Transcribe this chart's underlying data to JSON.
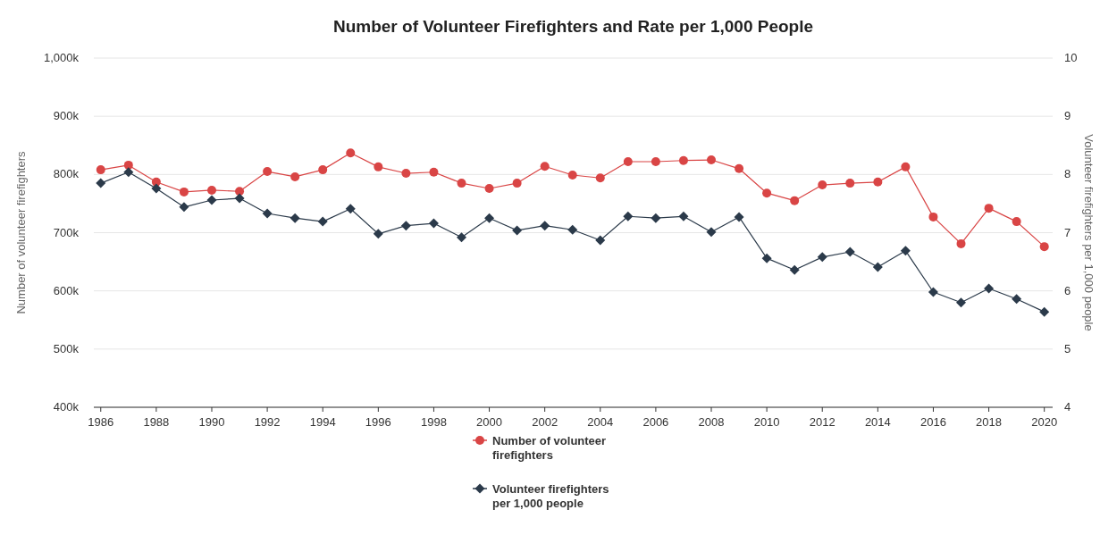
{
  "chart_data": {
    "type": "line",
    "title": "Number of Volunteer Firefighters and Rate per 1,000 People",
    "ylabel": "Number of volunteer firefighters",
    "y2label": "Volunteer firefighters per 1,000 people",
    "x": [
      1986,
      1987,
      1988,
      1989,
      1990,
      1991,
      1992,
      1993,
      1994,
      1995,
      1996,
      1997,
      1998,
      1999,
      2000,
      2001,
      2002,
      2003,
      2004,
      2005,
      2006,
      2007,
      2008,
      2009,
      2010,
      2011,
      2012,
      2013,
      2014,
      2015,
      2016,
      2017,
      2018,
      2019,
      2020
    ],
    "xlim": [
      1985.75,
      2020.3
    ],
    "xticks": [
      1986,
      1988,
      1990,
      1992,
      1994,
      1996,
      1998,
      2000,
      2002,
      2004,
      2006,
      2008,
      2010,
      2012,
      2014,
      2016,
      2018,
      2020
    ],
    "ylim": [
      400000,
      1000000
    ],
    "yticks": [
      {
        "value": 400000,
        "label": "400k"
      },
      {
        "value": 500000,
        "label": "500k"
      },
      {
        "value": 600000,
        "label": "600k"
      },
      {
        "value": 700000,
        "label": "700k"
      },
      {
        "value": 800000,
        "label": "800k"
      },
      {
        "value": 900000,
        "label": "900k"
      },
      {
        "value": 1000000,
        "label": "1,000k"
      }
    ],
    "y2lim": [
      4,
      10
    ],
    "y2ticks": [
      4,
      5,
      6,
      7,
      8,
      9,
      10
    ],
    "grid": "y",
    "legend": "bottom",
    "series": [
      {
        "name": "Number of volunteer firefighters",
        "color": "#d94545",
        "marker": "circle",
        "values": [
          808000,
          816000,
          787000,
          770000,
          773000,
          771000,
          805000,
          796000,
          808000,
          837000,
          813000,
          802000,
          804000,
          785000,
          776000,
          785000,
          814000,
          799000,
          794000,
          822000,
          822000,
          824000,
          825000,
          810000,
          768000,
          755000,
          782000,
          785000,
          787000,
          813000,
          727000,
          681000,
          742000,
          719000,
          676000
        ]
      },
      {
        "name": "Volunteer firefighters per 1,000 people",
        "color": "#2b3a4a",
        "marker": "diamond",
        "axis": "y2",
        "values": [
          7.85,
          8.04,
          7.76,
          7.44,
          7.56,
          7.59,
          7.33,
          7.25,
          7.19,
          7.41,
          6.98,
          7.12,
          7.16,
          6.92,
          7.25,
          7.04,
          7.12,
          7.05,
          6.87,
          7.28,
          7.25,
          7.28,
          7.01,
          7.27,
          6.56,
          6.36,
          6.58,
          6.67,
          6.41,
          6.69,
          5.98,
          5.8,
          6.04,
          5.86,
          5.64
        ]
      }
    ]
  }
}
